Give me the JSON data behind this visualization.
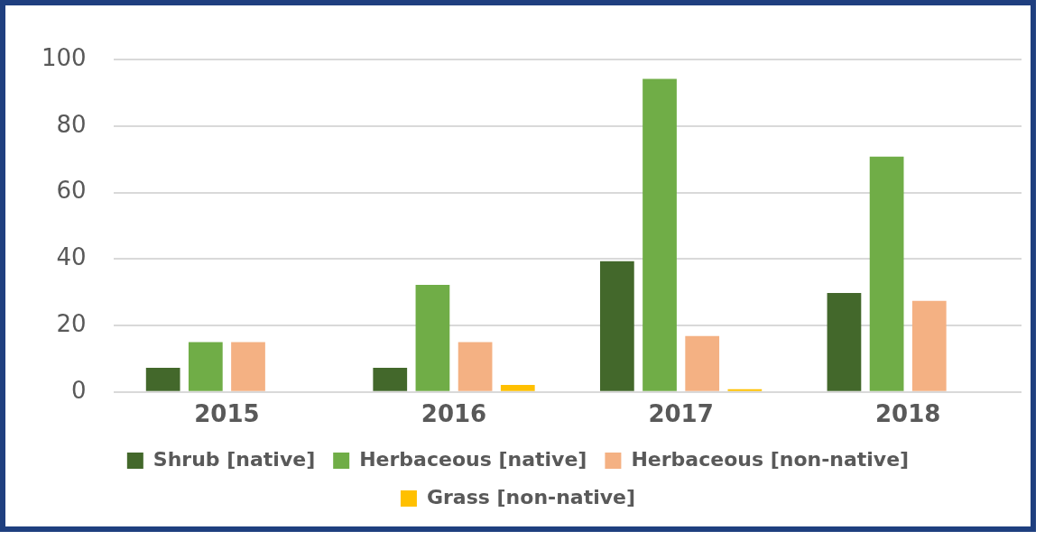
{
  "chart_data": {
    "type": "bar",
    "categories": [
      "2015",
      "2016",
      "2017",
      "2018"
    ],
    "series": [
      {
        "name": "Shrub [native]",
        "color": "#43682b",
        "values": [
          7.3,
          7.3,
          39.3,
          29.8
        ]
      },
      {
        "name": "Herbaceous [native]",
        "color": "#70ad47",
        "values": [
          15,
          32.2,
          94.2,
          70.8
        ]
      },
      {
        "name": "Herbaceous [non-native]",
        "color": "#f4b183",
        "values": [
          15,
          15,
          16.8,
          27.4
        ]
      },
      {
        "name": "Grass [non-native]",
        "color": "#ffc000",
        "values": [
          null,
          2.1,
          0.8,
          null
        ]
      }
    ],
    "ylim": [
      0,
      100
    ],
    "yticks": [
      0,
      20,
      40,
      60,
      80,
      100
    ],
    "grid": "y",
    "legend": "bottom"
  }
}
